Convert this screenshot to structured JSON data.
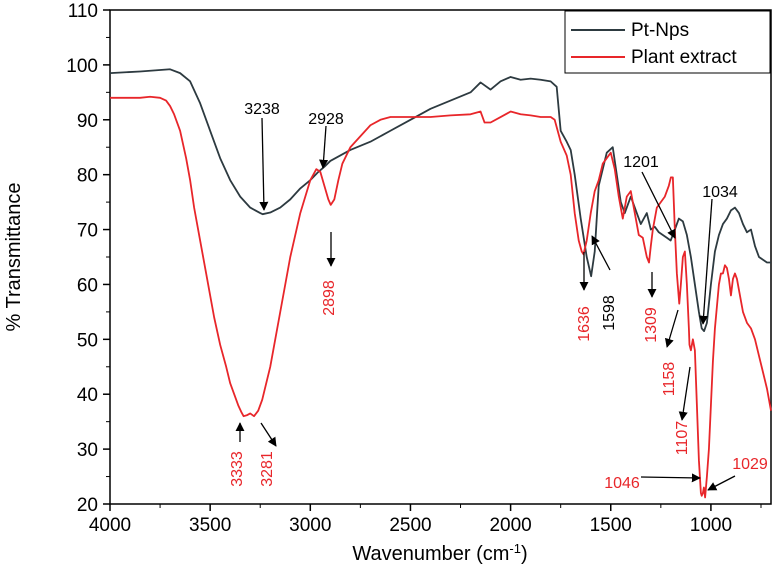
{
  "chart_data": {
    "type": "line",
    "title": "",
    "xlabel": "Wavenumber (cm",
    "xlabel_sup": "-1",
    "xlabel_suffix": ")",
    "ylabel": "% Transmittance",
    "xlim": [
      4000,
      700
    ],
    "ylim": [
      20,
      110
    ],
    "xticks": [
      4000,
      3500,
      3000,
      2500,
      2000,
      1500,
      1000
    ],
    "yticks": [
      20,
      30,
      40,
      50,
      60,
      70,
      80,
      90,
      100,
      110
    ],
    "legend_position": "top-right",
    "series": [
      {
        "name": "Pt-Nps",
        "color": "#2d3a40",
        "points": [
          [
            4000,
            98.5
          ],
          [
            3850,
            98.8
          ],
          [
            3700,
            99.2
          ],
          [
            3650,
            98.5
          ],
          [
            3600,
            97
          ],
          [
            3550,
            93
          ],
          [
            3500,
            88
          ],
          [
            3450,
            83
          ],
          [
            3400,
            79
          ],
          [
            3350,
            76
          ],
          [
            3300,
            74
          ],
          [
            3250,
            73
          ],
          [
            3238,
            72.8
          ],
          [
            3200,
            73.1
          ],
          [
            3150,
            74
          ],
          [
            3100,
            75.5
          ],
          [
            3050,
            77.5
          ],
          [
            3000,
            79
          ],
          [
            2960,
            80.5
          ],
          [
            2928,
            81.5
          ],
          [
            2900,
            82.5
          ],
          [
            2850,
            83.5
          ],
          [
            2800,
            84.5
          ],
          [
            2700,
            86
          ],
          [
            2600,
            88
          ],
          [
            2500,
            90
          ],
          [
            2400,
            92
          ],
          [
            2300,
            93.5
          ],
          [
            2200,
            95
          ],
          [
            2150,
            96.8
          ],
          [
            2100,
            95.5
          ],
          [
            2050,
            97
          ],
          [
            2000,
            97.8
          ],
          [
            1950,
            97.3
          ],
          [
            1900,
            97.5
          ],
          [
            1850,
            97.3
          ],
          [
            1800,
            97
          ],
          [
            1770,
            96
          ],
          [
            1750,
            88
          ],
          [
            1720,
            86
          ],
          [
            1700,
            84.5
          ],
          [
            1680,
            80
          ],
          [
            1650,
            72
          ],
          [
            1620,
            65
          ],
          [
            1598,
            61.5
          ],
          [
            1580,
            66
          ],
          [
            1560,
            78
          ],
          [
            1540,
            81
          ],
          [
            1520,
            84
          ],
          [
            1505,
            84.5
          ],
          [
            1490,
            85
          ],
          [
            1470,
            80
          ],
          [
            1450,
            75
          ],
          [
            1430,
            73
          ],
          [
            1400,
            76
          ],
          [
            1380,
            74
          ],
          [
            1350,
            71
          ],
          [
            1320,
            73
          ],
          [
            1300,
            70
          ],
          [
            1280,
            70.5
          ],
          [
            1260,
            69.5
          ],
          [
            1240,
            69
          ],
          [
            1220,
            68.5
          ],
          [
            1201,
            68
          ],
          [
            1180,
            70
          ],
          [
            1160,
            72
          ],
          [
            1140,
            71.5
          ],
          [
            1120,
            69
          ],
          [
            1100,
            65
          ],
          [
            1080,
            60
          ],
          [
            1060,
            55
          ],
          [
            1046,
            52
          ],
          [
            1034,
            51.5
          ],
          [
            1020,
            53
          ],
          [
            1000,
            60
          ],
          [
            980,
            66
          ],
          [
            960,
            69
          ],
          [
            940,
            71
          ],
          [
            920,
            72
          ],
          [
            900,
            73.5
          ],
          [
            880,
            74
          ],
          [
            860,
            73
          ],
          [
            840,
            71
          ],
          [
            820,
            69.5
          ],
          [
            800,
            70
          ],
          [
            780,
            67
          ],
          [
            760,
            65
          ],
          [
            740,
            64.5
          ],
          [
            720,
            64
          ],
          [
            700,
            64
          ]
        ]
      },
      {
        "name": "Plant extract",
        "color": "#e8262a",
        "points": [
          [
            4000,
            94
          ],
          [
            3850,
            94
          ],
          [
            3800,
            94.2
          ],
          [
            3750,
            94
          ],
          [
            3720,
            93.5
          ],
          [
            3700,
            92.5
          ],
          [
            3680,
            91
          ],
          [
            3650,
            88
          ],
          [
            3620,
            83
          ],
          [
            3600,
            79
          ],
          [
            3580,
            74
          ],
          [
            3550,
            68
          ],
          [
            3520,
            62
          ],
          [
            3500,
            58
          ],
          [
            3480,
            54
          ],
          [
            3450,
            49
          ],
          [
            3420,
            45
          ],
          [
            3400,
            42
          ],
          [
            3380,
            40
          ],
          [
            3360,
            38
          ],
          [
            3345,
            36.8
          ],
          [
            3333,
            36
          ],
          [
            3315,
            36.2
          ],
          [
            3300,
            36.5
          ],
          [
            3281,
            36
          ],
          [
            3260,
            37
          ],
          [
            3240,
            39
          ],
          [
            3200,
            45
          ],
          [
            3150,
            55
          ],
          [
            3100,
            65
          ],
          [
            3050,
            73
          ],
          [
            3000,
            79
          ],
          [
            2970,
            81
          ],
          [
            2950,
            80.5
          ],
          [
            2930,
            78
          ],
          [
            2910,
            75.5
          ],
          [
            2898,
            74.5
          ],
          [
            2880,
            75.5
          ],
          [
            2860,
            79
          ],
          [
            2840,
            82
          ],
          [
            2800,
            85
          ],
          [
            2750,
            87
          ],
          [
            2700,
            89
          ],
          [
            2650,
            90
          ],
          [
            2600,
            90.5
          ],
          [
            2500,
            90.5
          ],
          [
            2400,
            90.5
          ],
          [
            2300,
            90.8
          ],
          [
            2200,
            91
          ],
          [
            2150,
            91.5
          ],
          [
            2130,
            89.5
          ],
          [
            2100,
            89.5
          ],
          [
            2050,
            90.5
          ],
          [
            2000,
            91.5
          ],
          [
            1950,
            91
          ],
          [
            1900,
            90.8
          ],
          [
            1850,
            90.5
          ],
          [
            1800,
            90.5
          ],
          [
            1780,
            90
          ],
          [
            1750,
            86
          ],
          [
            1720,
            83.5
          ],
          [
            1700,
            80
          ],
          [
            1680,
            73
          ],
          [
            1660,
            68
          ],
          [
            1645,
            66
          ],
          [
            1636,
            65.5
          ],
          [
            1620,
            68
          ],
          [
            1600,
            73
          ],
          [
            1580,
            77
          ],
          [
            1560,
            79
          ],
          [
            1540,
            82
          ],
          [
            1520,
            83
          ],
          [
            1500,
            84
          ],
          [
            1480,
            81
          ],
          [
            1460,
            76
          ],
          [
            1440,
            72
          ],
          [
            1420,
            76
          ],
          [
            1400,
            77
          ],
          [
            1380,
            73
          ],
          [
            1360,
            69
          ],
          [
            1340,
            68.5
          ],
          [
            1320,
            65
          ],
          [
            1309,
            64
          ],
          [
            1300,
            67
          ],
          [
            1290,
            70
          ],
          [
            1270,
            74
          ],
          [
            1250,
            75
          ],
          [
            1230,
            76
          ],
          [
            1210,
            78
          ],
          [
            1200,
            79.5
          ],
          [
            1190,
            79.5
          ],
          [
            1180,
            70
          ],
          [
            1170,
            62
          ],
          [
            1158,
            56.5
          ],
          [
            1150,
            60
          ],
          [
            1140,
            65
          ],
          [
            1130,
            66
          ],
          [
            1120,
            60
          ],
          [
            1110,
            52
          ],
          [
            1107,
            49
          ],
          [
            1100,
            48
          ],
          [
            1090,
            50
          ],
          [
            1080,
            48
          ],
          [
            1070,
            38
          ],
          [
            1060,
            28
          ],
          [
            1050,
            22
          ],
          [
            1046,
            21.5
          ],
          [
            1040,
            22
          ],
          [
            1035,
            23
          ],
          [
            1029,
            21.2
          ],
          [
            1020,
            25
          ],
          [
            1010,
            30
          ],
          [
            1000,
            38
          ],
          [
            990,
            46
          ],
          [
            980,
            52
          ],
          [
            970,
            56
          ],
          [
            960,
            60
          ],
          [
            950,
            62
          ],
          [
            940,
            62
          ],
          [
            930,
            63.5
          ],
          [
            920,
            63
          ],
          [
            910,
            61
          ],
          [
            900,
            58
          ],
          [
            890,
            61
          ],
          [
            880,
            62
          ],
          [
            870,
            61
          ],
          [
            860,
            59
          ],
          [
            850,
            57
          ],
          [
            840,
            55
          ],
          [
            820,
            53
          ],
          [
            800,
            52
          ],
          [
            780,
            50
          ],
          [
            760,
            47
          ],
          [
            740,
            44
          ],
          [
            720,
            41
          ],
          [
            700,
            37
          ]
        ]
      }
    ],
    "annotations": [
      {
        "label": "3238",
        "series": "Pt-Nps",
        "color": "#000000",
        "x": 3238,
        "y": 73
      },
      {
        "label": "2928",
        "series": "Pt-Nps",
        "color": "#000000",
        "x": 2928,
        "y": 81.5
      },
      {
        "label": "1598",
        "series": "Pt-Nps",
        "color": "#000000",
        "x": 1598,
        "y": 62
      },
      {
        "label": "1201",
        "series": "Pt-Nps",
        "color": "#000000",
        "x": 1201,
        "y": 68
      },
      {
        "label": "1034",
        "series": "Pt-Nps",
        "color": "#000000",
        "x": 1034,
        "y": 52
      },
      {
        "label": "3333",
        "series": "Plant extract",
        "color": "#e8262a",
        "x": 3333,
        "y": 36
      },
      {
        "label": "3281",
        "series": "Plant extract",
        "color": "#e8262a",
        "x": 3281,
        "y": 36
      },
      {
        "label": "2898",
        "series": "Plant extract",
        "color": "#e8262a",
        "x": 2898,
        "y": 74.5
      },
      {
        "label": "1636",
        "series": "Plant extract",
        "color": "#e8262a",
        "x": 1636,
        "y": 65.5
      },
      {
        "label": "1309",
        "series": "Plant extract",
        "color": "#e8262a",
        "x": 1309,
        "y": 64
      },
      {
        "label": "1158",
        "series": "Plant extract",
        "color": "#e8262a",
        "x": 1158,
        "y": 56.5
      },
      {
        "label": "1107",
        "series": "Plant extract",
        "color": "#e8262a",
        "x": 1107,
        "y": 48
      },
      {
        "label": "1046",
        "series": "Plant extract",
        "color": "#e8262a",
        "x": 1046,
        "y": 21.5
      },
      {
        "label": "1029",
        "series": "Plant extract",
        "color": "#e8262a",
        "x": 1029,
        "y": 21.2
      }
    ]
  }
}
